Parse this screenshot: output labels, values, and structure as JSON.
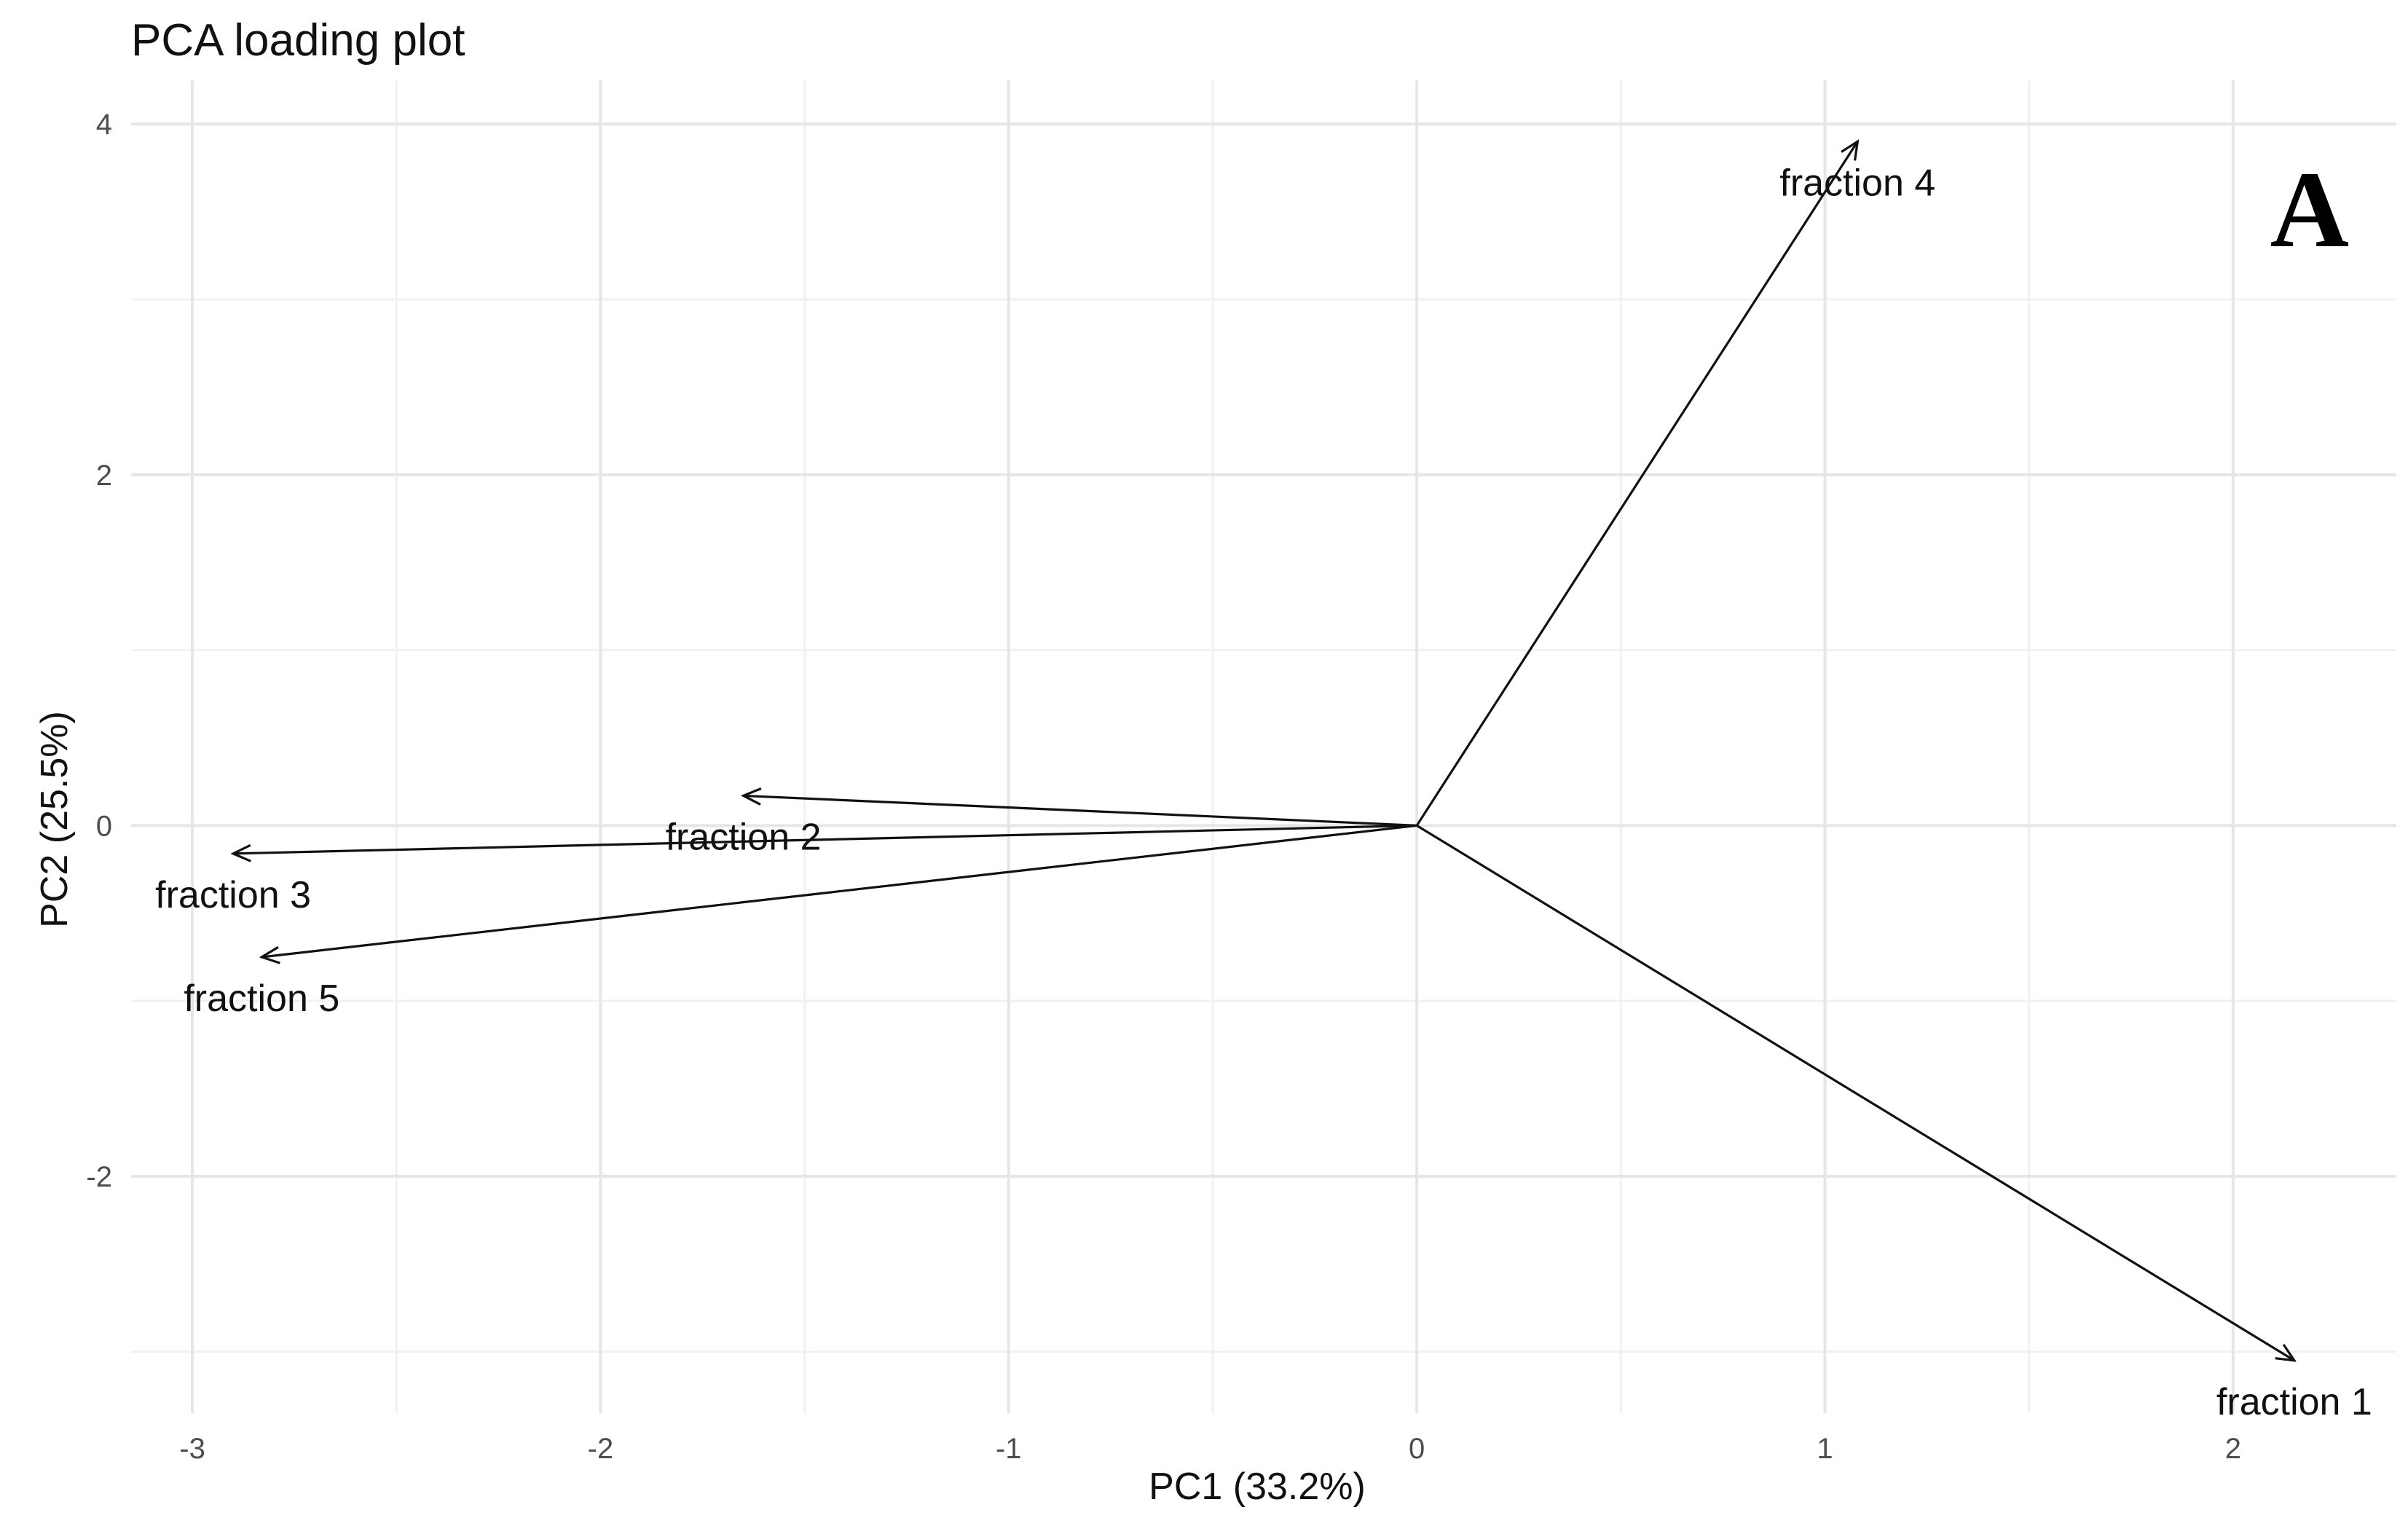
{
  "chart_data": {
    "type": "scatter",
    "subtype": "pca-loading-vectors",
    "title": "PCA loading plot",
    "xlabel": "PC1 (33.2%)",
    "ylabel": "PC2 (25.5%)",
    "panel_letter": "A",
    "xlim": [
      -3.15,
      2.4
    ],
    "ylim": [
      -3.35,
      4.25
    ],
    "x_ticks": [
      -3,
      -2,
      -1,
      0,
      1,
      2
    ],
    "y_ticks": [
      -2,
      0,
      2,
      4
    ],
    "grid": true,
    "legend": "none",
    "origin": [
      0,
      0
    ],
    "vectors": [
      {
        "name": "fraction 1",
        "x": 2.15,
        "y": -3.05
      },
      {
        "name": "fraction 2",
        "x": -1.65,
        "y": 0.17
      },
      {
        "name": "fraction 3",
        "x": -2.9,
        "y": -0.16
      },
      {
        "name": "fraction 4",
        "x": 1.08,
        "y": 3.9
      },
      {
        "name": "fraction 5",
        "x": -2.83,
        "y": -0.75
      }
    ]
  }
}
